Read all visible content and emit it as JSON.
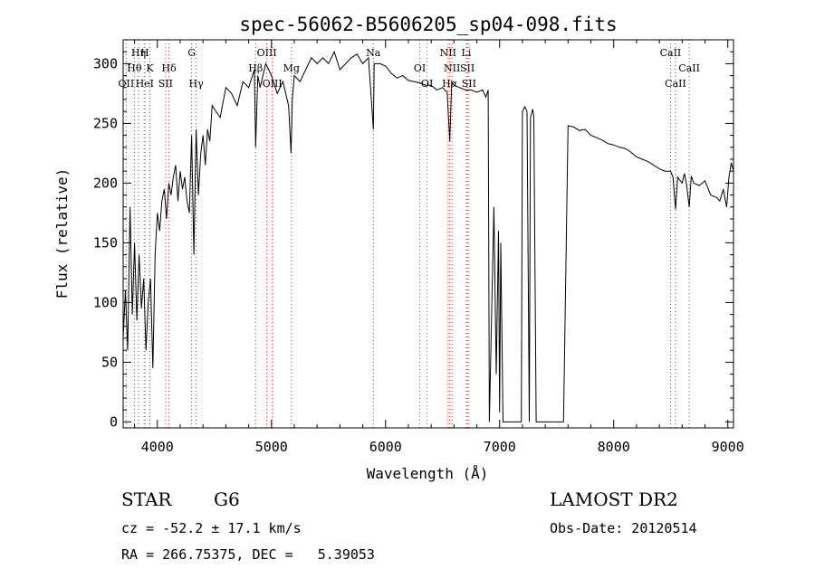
{
  "chart_data": {
    "type": "line",
    "title": "spec-56062-B5606205_sp04-098.fits",
    "xlabel": "Wavelength (Å)",
    "ylabel": "Flux (relative)",
    "xlim": [
      3700,
      9050
    ],
    "ylim": [
      -5,
      320
    ],
    "xticks": [
      4000,
      5000,
      6000,
      7000,
      8000,
      9000
    ],
    "yticks": [
      0,
      50,
      100,
      150,
      200,
      250,
      300
    ],
    "grid": false,
    "series": [
      {
        "x": [
          3700,
          3720,
          3740,
          3760,
          3780,
          3800,
          3820,
          3840,
          3860,
          3880,
          3900,
          3920,
          3940,
          3960,
          3980,
          4000,
          4020,
          4040,
          4060,
          4080,
          4100,
          4120,
          4140,
          4160,
          4180,
          4200,
          4220,
          4240,
          4260,
          4280,
          4300,
          4320,
          4340,
          4360,
          4380,
          4400,
          4420,
          4440,
          4460,
          4480,
          4500,
          4550,
          4600,
          4650,
          4700,
          4750,
          4800,
          4850,
          4861,
          4880,
          4900,
          4950,
          5000,
          5050,
          5100,
          5150,
          5172,
          5183,
          5200,
          5250,
          5300,
          5350,
          5400,
          5450,
          5500,
          5550,
          5600,
          5650,
          5700,
          5750,
          5800,
          5850,
          5893,
          5900,
          5950,
          6000,
          6050,
          6100,
          6150,
          6200,
          6250,
          6300,
          6350,
          6400,
          6450,
          6500,
          6540,
          6563,
          6580,
          6600,
          6650,
          6700,
          6750,
          6800,
          6850,
          6880,
          6900,
          6910,
          6950,
          6970,
          6990,
          7000,
          7010,
          7030,
          7050,
          7060,
          7100,
          7150,
          7180,
          7190,
          7200,
          7220,
          7240,
          7260,
          7270,
          7290,
          7300,
          7320,
          7350,
          7400,
          7450,
          7500,
          7540,
          7560,
          7600,
          7650,
          7700,
          7750,
          7800,
          7850,
          7900,
          7950,
          8000,
          8050,
          8100,
          8150,
          8200,
          8250,
          8300,
          8350,
          8400,
          8450,
          8498,
          8520,
          8542,
          8560,
          8600,
          8620,
          8640,
          8662,
          8680,
          8700,
          8750,
          8800,
          8850,
          8900,
          8930,
          8960,
          8990,
          9010,
          9030,
          9050
        ],
        "values": [
          70,
          110,
          60,
          180,
          90,
          150,
          85,
          140,
          95,
          120,
          60,
          100,
          120,
          45,
          140,
          175,
          160,
          185,
          195,
          170,
          200,
          190,
          205,
          215,
          185,
          210,
          195,
          205,
          185,
          175,
          240,
          140,
          245,
          190,
          225,
          240,
          215,
          245,
          235,
          265,
          262,
          255,
          280,
          275,
          265,
          285,
          280,
          295,
          230,
          290,
          280,
          300,
          290,
          275,
          285,
          265,
          225,
          270,
          290,
          285,
          295,
          305,
          300,
          305,
          300,
          310,
          295,
          300,
          305,
          308,
          300,
          305,
          245,
          300,
          300,
          298,
          292,
          288,
          290,
          286,
          285,
          284,
          282,
          282,
          278,
          280,
          276,
          235,
          285,
          282,
          280,
          278,
          278,
          276,
          278,
          272,
          278,
          0,
          180,
          40,
          160,
          8,
          150,
          0,
          0,
          0,
          0,
          0,
          0,
          0,
          260,
          264,
          260,
          0,
          255,
          262,
          255,
          0,
          0,
          0,
          0,
          0,
          0,
          0,
          248,
          247,
          244,
          245,
          240,
          238,
          236,
          233,
          232,
          230,
          229,
          226,
          222,
          220,
          218,
          215,
          212,
          210,
          210,
          205,
          178,
          205,
          200,
          208,
          198,
          180,
          206,
          200,
          198,
          202,
          190,
          188,
          185,
          195,
          180,
          205,
          217,
          210
        ]
      }
    ],
    "line_markers": [
      {
        "label": "Hη",
        "x": 3835,
        "row": 0,
        "color": "#555555"
      },
      {
        "label": "H",
        "x": 3889,
        "row": 0,
        "color": "#555555"
      },
      {
        "label": "Hθ",
        "x": 3798,
        "row": 1,
        "color": "#555555"
      },
      {
        "label": "K",
        "x": 3934,
        "row": 1,
        "color": "#555555"
      },
      {
        "label": "Hδ",
        "x": 4102,
        "row": 1,
        "color": "#555555"
      },
      {
        "label": "OII",
        "x": 3727,
        "row": 2,
        "color": "#cc3333"
      },
      {
        "label": "HeI",
        "x": 3889,
        "row": 2,
        "color": "#555555"
      },
      {
        "label": "SII",
        "x": 4072,
        "row": 2,
        "color": "#cc3333"
      },
      {
        "label": "G",
        "x": 4300,
        "row": 0,
        "color": "#555555"
      },
      {
        "label": "Hγ",
        "x": 4340,
        "row": 2,
        "color": "#555555"
      },
      {
        "label": "OIII",
        "x": 4959,
        "row": 0,
        "color": "#cc3333"
      },
      {
        "label": "Hβ",
        "x": 4861,
        "row": 1,
        "color": "#555555"
      },
      {
        "label": "OIII",
        "x": 5007,
        "row": 2,
        "color": "#cc3333"
      },
      {
        "label": "Mg",
        "x": 5175,
        "row": 1,
        "color": "#555555"
      },
      {
        "label": "Na",
        "x": 5893,
        "row": 0,
        "color": "#555555"
      },
      {
        "label": "OI",
        "x": 6300,
        "row": 1,
        "color": "#cc3333"
      },
      {
        "label": "OI",
        "x": 6364,
        "row": 2,
        "color": "#cc3333"
      },
      {
        "label": "NII",
        "x": 6548,
        "row": 0,
        "color": "#cc3333"
      },
      {
        "label": "Li",
        "x": 6708,
        "row": 0,
        "color": "#555555"
      },
      {
        "label": "NII",
        "x": 6583,
        "row": 1,
        "color": "#cc3333"
      },
      {
        "label": "SII",
        "x": 6717,
        "row": 1,
        "color": "#cc3333"
      },
      {
        "label": "Hα",
        "x": 6563,
        "row": 2,
        "color": "#cc3333"
      },
      {
        "label": "SII",
        "x": 6731,
        "row": 2,
        "color": "#cc3333"
      },
      {
        "label": "CaII",
        "x": 8498,
        "row": 0,
        "color": "#555555"
      },
      {
        "label": "CaII",
        "x": 8662,
        "row": 1,
        "color": "#555555"
      },
      {
        "label": "CaII",
        "x": 8542,
        "row": 2,
        "color": "#555555"
      }
    ]
  },
  "info": {
    "object_class": "STAR",
    "subclass": "G6",
    "redshift_line": "cz = -52.2 ± 17.1 km/s",
    "coords_line": "RA = 266.75375, DEC =   5.39053",
    "survey": "LAMOST DR2",
    "obs_date_line": "Obs-Date: 20120514"
  }
}
